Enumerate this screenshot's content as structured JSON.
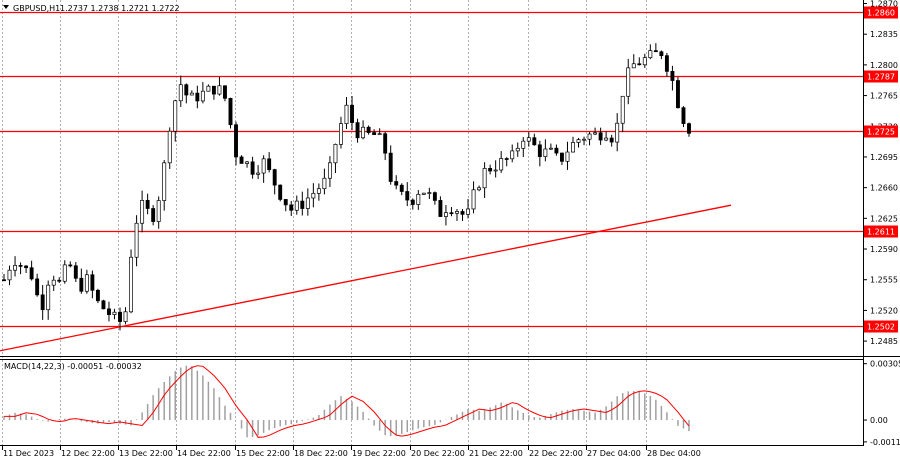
{
  "header": {
    "symbol": "GBPUSD,H1",
    "ohlc": "1.2737 1.2738 1.2721 1.2722",
    "macd_label": "MACD(14,22,3) -0.00051 -0.00032"
  },
  "colors": {
    "candles": "#000000",
    "levels": "#ff0000",
    "trendline": "#ff0000",
    "macd_hist": "#a0a0a0",
    "macd_signal": "#ff0000",
    "level_box": "#ff0000"
  },
  "chart_data": {
    "type": "candlestick",
    "instrument": "GBPUSD",
    "timeframe": "H1",
    "price_axis": {
      "range": [
        1.2468,
        1.2874
      ],
      "ticks": [
        "1.2870",
        "1.2835",
        "1.2800",
        "1.2765",
        "1.2730",
        "1.2695",
        "1.2660",
        "1.2625",
        "1.2590",
        "1.2555",
        "1.2520",
        "1.2485"
      ]
    },
    "horizontal_levels": [
      {
        "value": 1.286,
        "label": "1.2860"
      },
      {
        "value": 1.2787,
        "label": "1.2787"
      },
      {
        "value": 1.2725,
        "label": "1.2725"
      },
      {
        "value": 1.2611,
        "label": "1.2611"
      },
      {
        "value": 1.2502,
        "label": "1.2502"
      }
    ],
    "trendline": {
      "start": {
        "time": "11 Dec 2023 00:00",
        "price": 1.2474
      },
      "end": {
        "time": "28 Dec 2023 16:00",
        "price": 1.264
      }
    },
    "time_axis": [
      "11 Dec 2023",
      "12 Dec 22:00",
      "13 Dec 22:00",
      "14 Dec 22:00",
      "15 Dec 22:00",
      "18 Dec 22:00",
      "19 Dec 22:00",
      "20 Dec 22:00",
      "21 Dec 22:00",
      "22 Dec 22:00",
      "27 Dec 04:00",
      "28 Dec 04:00"
    ],
    "price_path": [
      1.2555,
      1.258,
      1.257,
      1.256,
      1.252,
      1.2565,
      1.255,
      1.2575,
      1.2545,
      1.2555,
      1.253,
      1.252,
      1.251,
      1.2505,
      1.2615,
      1.264,
      1.2625,
      1.266,
      1.274,
      1.278,
      1.276,
      1.2765,
      1.277,
      1.2775,
      1.276,
      1.27,
      1.269,
      1.268,
      1.269,
      1.267,
      1.265,
      1.2635,
      1.264,
      1.265,
      1.266,
      1.267,
      1.272,
      1.275,
      1.2725,
      1.272,
      1.272,
      1.271,
      1.266,
      1.265,
      1.2645,
      1.266,
      1.265,
      1.263,
      1.264,
      1.2635,
      1.2625,
      1.266,
      1.268,
      1.2685,
      1.269,
      1.2695,
      1.272,
      1.271,
      1.27,
      1.27,
      1.269,
      1.2705,
      1.2715,
      1.272,
      1.272,
      1.2725,
      1.2715,
      1.278,
      1.28,
      1.2805,
      1.281,
      1.2815,
      1.279,
      1.275,
      1.2722
    ],
    "candles_visible": 125,
    "macd": {
      "params": "14,22,3",
      "main": -0.00051,
      "signal": -0.00032,
      "axis_ticks": [
        "0.00305",
        "0.00",
        "-0.00118"
      ],
      "hist_path": [
        0.0002,
        0.0004,
        0.0003,
        0.0,
        -0.0001,
        0.0001,
        0.0,
        -0.0001,
        -0.0002,
        -0.0001,
        -0.0002,
        -0.0003,
        0.0005,
        0.0015,
        0.0022,
        0.0028,
        0.003,
        0.0025,
        0.0018,
        0.0008,
        0.0,
        -0.001,
        -0.0008,
        -0.0005,
        -0.0003,
        -0.0002,
        0.0,
        0.0002,
        0.0008,
        0.0013,
        0.001,
        0.0004,
        -0.0004,
        -0.0009,
        -0.0008,
        -0.0006,
        -0.0004,
        -0.0003,
        0.0,
        0.0003,
        0.0006,
        0.0005,
        0.0007,
        0.001,
        0.0006,
        0.0003,
        0.0001,
        0.0003,
        0.0005,
        0.0006,
        0.0005,
        0.0004,
        0.0008,
        0.0014,
        0.0016,
        0.0015,
        0.0012,
        0.0005,
        -0.0003,
        -0.0006
      ]
    }
  }
}
